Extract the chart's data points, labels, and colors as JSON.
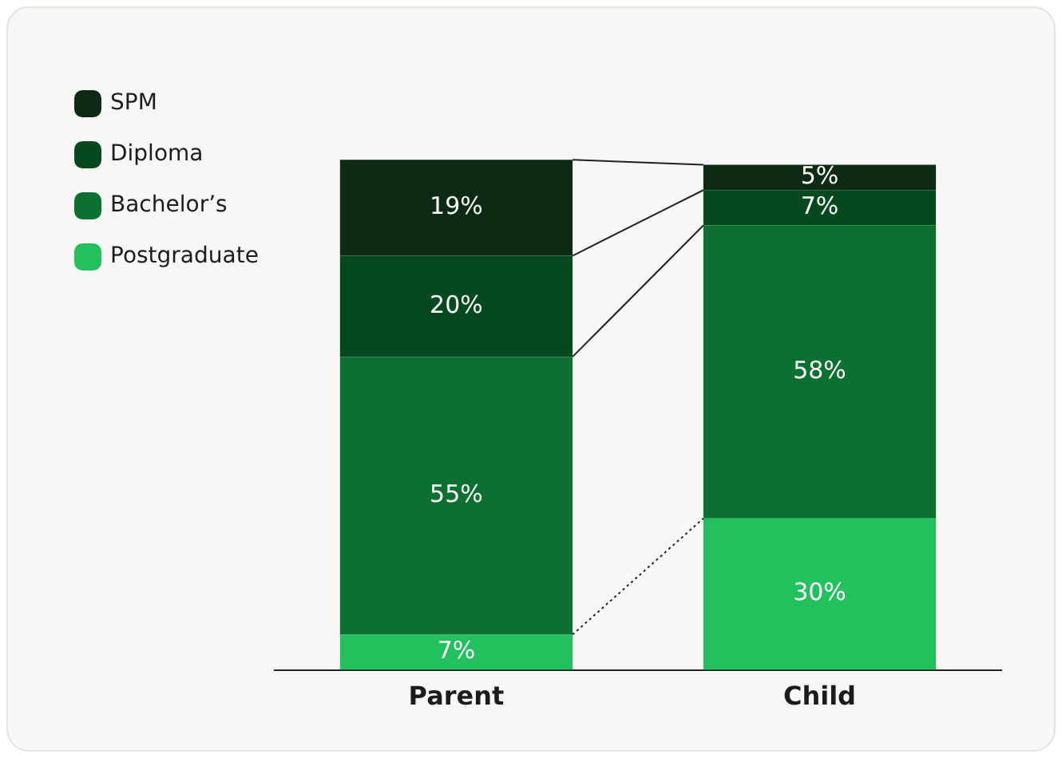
{
  "chart_data": {
    "type": "bar",
    "stacked": true,
    "categories": [
      "Parent",
      "Child"
    ],
    "series": [
      {
        "name": "Postgraduate",
        "color": "#22c15e",
        "values": [
          7,
          30
        ],
        "value_labels": [
          "7%",
          "30%"
        ]
      },
      {
        "name": "Bachelor’s",
        "color": "#0b7030",
        "values": [
          55,
          58
        ],
        "value_labels": [
          "55%",
          "58%"
        ]
      },
      {
        "name": "Diploma",
        "color": "#06491f",
        "values": [
          20,
          7
        ],
        "value_labels": [
          "20%",
          "7%"
        ]
      },
      {
        "name": "SPM",
        "color": "#0c2a14",
        "values": [
          19,
          5
        ],
        "value_labels": [
          "19%",
          "5%"
        ]
      }
    ],
    "legend": "top left",
    "grid": false
  }
}
